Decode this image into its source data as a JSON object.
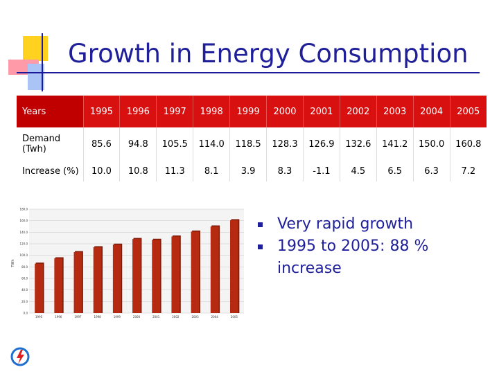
{
  "slide": {
    "title": "Growth in Energy Consumption"
  },
  "table": {
    "header_label": "Years",
    "years": [
      "1995",
      "1996",
      "1997",
      "1998",
      "1999",
      "2000",
      "2001",
      "2002",
      "2003",
      "2004",
      "2005"
    ],
    "demand_label": "Demand (Twh)",
    "demand": [
      "85.6",
      "94.8",
      "105.5",
      "114.0",
      "118.5",
      "128.3",
      "126.9",
      "132.6",
      "141.2",
      "150.0",
      "160.8"
    ],
    "increase_label": "Increase (%)",
    "increase": [
      "10.0",
      "10.8",
      "11.3",
      "8.1",
      "3.9",
      "8.3",
      "-1.1",
      "4.5",
      "6.5",
      "6.3",
      "7.2"
    ]
  },
  "bullets": [
    "Very rapid growth",
    "1995 to 2005: 88 % increase"
  ],
  "chart_data": {
    "type": "bar",
    "title": "",
    "xlabel": "",
    "ylabel": "TWh",
    "categories": [
      "1995",
      "1996",
      "1997",
      "1998",
      "1999",
      "2000",
      "2001",
      "2002",
      "2003",
      "2004",
      "2005"
    ],
    "values": [
      85.6,
      94.8,
      105.5,
      114.0,
      118.5,
      128.3,
      126.9,
      132.6,
      141.2,
      150.0,
      160.8
    ],
    "ylim": [
      0,
      180
    ],
    "yticks": [
      "0.0",
      "20.0",
      "40.0",
      "60.0",
      "80.0",
      "100.0",
      "120.0",
      "140.0",
      "160.0",
      "180.0"
    ],
    "bar_color": "#b52a10",
    "grid": true
  },
  "colors": {
    "title": "#1f1f9a",
    "header_bg": "#d81010",
    "bullet": "#1f1f9a"
  }
}
